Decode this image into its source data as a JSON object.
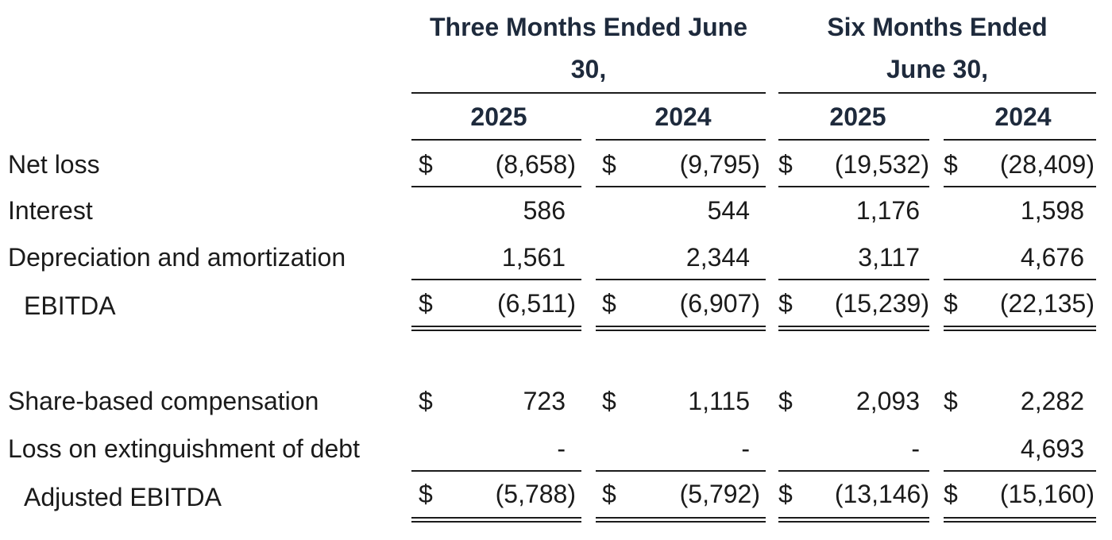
{
  "header": {
    "group_three_line1": "Three Months Ended June",
    "group_three_line2": "30,",
    "group_six_line1": "Six Months Ended",
    "group_six_line2": "June 30,",
    "col1": "2025",
    "col2": "2024",
    "col3": "2025",
    "col4": "2024"
  },
  "currency_symbol": "$",
  "rows": {
    "net_loss": {
      "label": "Net loss",
      "v1": "(8,658)",
      "v2": "(9,795)",
      "v3": "(19,532)",
      "v4": "(28,409)"
    },
    "interest": {
      "label": "Interest",
      "v1": "586",
      "v2": "544",
      "v3": "1,176",
      "v4": "1,598"
    },
    "depreciation": {
      "label": "Depreciation and amortization",
      "v1": "1,561",
      "v2": "2,344",
      "v3": "3,117",
      "v4": "4,676"
    },
    "ebitda": {
      "label": "EBITDA",
      "v1": "(6,511)",
      "v2": "(6,907)",
      "v3": "(15,239)",
      "v4": "(22,135)"
    },
    "share_based": {
      "label": "Share-based compensation",
      "v1": "723",
      "v2": "1,115",
      "v3": "2,093",
      "v4": "2,282"
    },
    "loss_extinguishment": {
      "label": "Loss on extinguishment of debt",
      "v1": "-",
      "v2": "-",
      "v3": "-",
      "v4": "4,693"
    },
    "adjusted_ebitda": {
      "label": "Adjusted EBITDA",
      "v1": "(5,788)",
      "v2": "(5,792)",
      "v3": "(13,146)",
      "v4": "(15,160)"
    }
  }
}
